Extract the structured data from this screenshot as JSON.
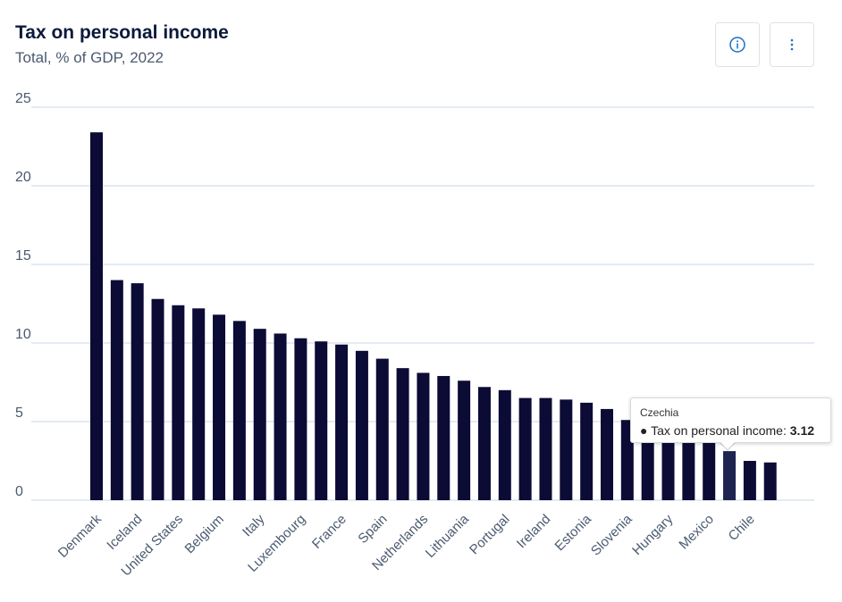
{
  "header": {
    "title": "Tax on personal income",
    "subtitle": "Total, % of GDP, 2022"
  },
  "toolbar": {
    "info_icon": "info-circle-icon",
    "more_icon": "vertical-ellipsis-icon"
  },
  "colors": {
    "bar": "#0b0b36",
    "bar_highlight": "#1d2450",
    "grid": "#c9d7e4",
    "accent": "#1a6fc4"
  },
  "tooltip": {
    "category": "Czechia",
    "bullet": "●",
    "series_label": "Tax on personal income:",
    "value": "3.12"
  },
  "chart_data": {
    "type": "bar",
    "title": "Tax on personal income",
    "subtitle": "Total, % of GDP, 2022",
    "ylim": [
      0,
      25
    ],
    "yticks": [
      0,
      5,
      10,
      15,
      20,
      25
    ],
    "grid": true,
    "highlighted_index": 31,
    "category_labels": [
      "Denmark",
      "Iceland",
      "United States",
      "Belgium",
      "Italy",
      "Luxembourg",
      "France",
      "Spain",
      "Netherlands",
      "Lithuania",
      "Portugal",
      "Ireland",
      "Estonia",
      "Slovenia",
      "Hungary",
      "Mexico",
      "Chile"
    ],
    "label_every": 2,
    "values": [
      23.4,
      14.0,
      13.8,
      12.8,
      12.4,
      12.2,
      11.8,
      11.4,
      10.9,
      10.6,
      10.3,
      10.1,
      9.9,
      9.5,
      9.0,
      8.4,
      8.1,
      7.9,
      7.6,
      7.2,
      7.0,
      6.5,
      6.5,
      6.4,
      6.2,
      5.8,
      5.1,
      4.8,
      4.5,
      4.2,
      3.9,
      3.12,
      2.5,
      2.4
    ]
  }
}
